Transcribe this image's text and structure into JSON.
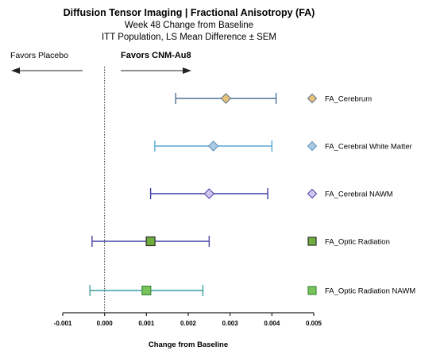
{
  "chart_data": {
    "type": "forest",
    "title": "Diffusion Tensor Imaging | Fractional Anisotropy (FA)",
    "subtitle_lines": [
      "Week 48 Change from Baseline",
      "ITT Population, LS Mean Difference ± SEM"
    ],
    "left_annotation": "Favors Placebo",
    "right_annotation": "Favors CNM-Au8",
    "xlabel": "Change from Baseline",
    "xlim": [
      -0.001,
      0.005
    ],
    "xticks": [
      -0.001,
      0.0,
      0.001,
      0.002,
      0.003,
      0.004,
      0.005
    ],
    "xtick_labels": [
      "-0.001",
      "0.000",
      "0.001",
      "0.002",
      "0.003",
      "0.004",
      "0.005"
    ],
    "reference_line": 0.0,
    "series": [
      {
        "name": "FA_Cerebrum",
        "mean": 0.0029,
        "lower": 0.0017,
        "upper": 0.0041,
        "marker": "diamond",
        "fill": "#e9c27a",
        "stroke": "#5a6f8c",
        "line": "#4f7090"
      },
      {
        "name": "FA_Cerebral White Matter",
        "mean": 0.0026,
        "lower": 0.0012,
        "upper": 0.004,
        "marker": "diamond",
        "fill": "#a9cbe4",
        "stroke": "#5a8fb8",
        "line": "#59a8d4"
      },
      {
        "name": "FA_Cerebral NAWM",
        "mean": 0.0025,
        "lower": 0.0011,
        "upper": 0.0039,
        "marker": "diamond",
        "fill": "#d1c7ee",
        "stroke": "#4b3fa8",
        "line": "#3e3ea6"
      },
      {
        "name": "FA_Optic Radiation",
        "mean": 0.0011,
        "lower": -0.0003,
        "upper": 0.0025,
        "marker": "square",
        "fill": "#6fae3c",
        "stroke": "#2e2e2e",
        "line": "#4a44a6"
      },
      {
        "name": "FA_Optic Radiation NAWM",
        "mean": 0.001,
        "lower": -0.00035,
        "upper": 0.00235,
        "marker": "square",
        "fill": "#79c25a",
        "stroke": "#3c8e3e",
        "line": "#3f9e9e"
      }
    ]
  }
}
